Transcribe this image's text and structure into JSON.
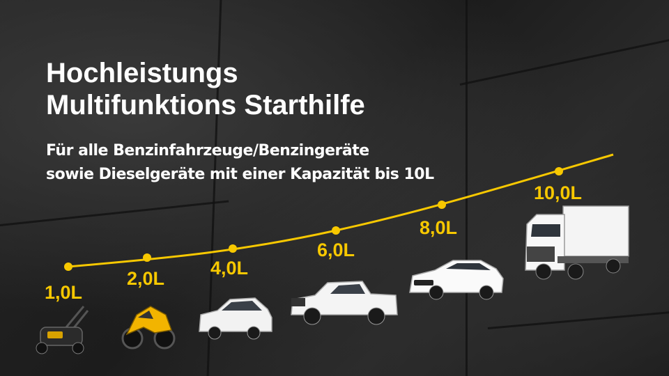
{
  "title": {
    "line1": "Hochleistungs",
    "line2": "Multifunktions Starthilfe"
  },
  "subtitle": {
    "line1": "Für alle Benzinfahrzeuge/Benzingeräte",
    "line2": "sowie Dieselgeräte mit einer Kapazität bis 10L"
  },
  "accent_color": "#f7c800",
  "capacity_levels": [
    {
      "label": "1,0L",
      "value": 1.0,
      "icon": "lawn-mower-icon"
    },
    {
      "label": "2,0L",
      "value": 2.0,
      "icon": "motorcycle-icon"
    },
    {
      "label": "4,0L",
      "value": 4.0,
      "icon": "compact-car-icon"
    },
    {
      "label": "6,0L",
      "value": 6.0,
      "icon": "pickup-truck-icon"
    },
    {
      "label": "8,0L",
      "value": 8.0,
      "icon": "sedan-car-icon"
    },
    {
      "label": "10,0L",
      "value": 10.0,
      "icon": "box-truck-icon"
    }
  ]
}
